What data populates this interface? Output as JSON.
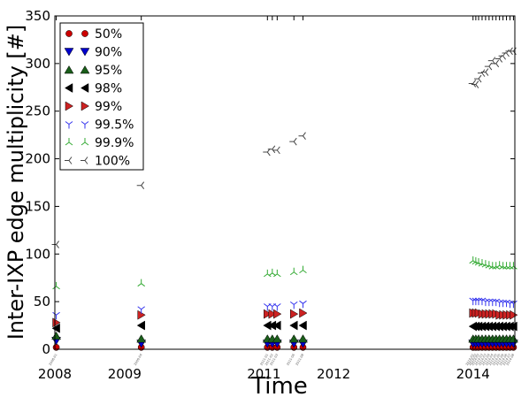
{
  "chart_data": {
    "type": "scatter",
    "title": "",
    "xlabel": "Time",
    "ylabel": "Inter-IXP edge multiplicity [#]",
    "xlim": [
      2008.0,
      2014.6
    ],
    "ylim": [
      0,
      350
    ],
    "x_ticks": [
      {
        "value": 2008,
        "label": "2008"
      },
      {
        "value": 2009,
        "label": "2009"
      },
      {
        "value": 2011,
        "label": "2011"
      },
      {
        "value": 2012,
        "label": "2012"
      },
      {
        "value": 2014,
        "label": "2014"
      }
    ],
    "y_ticks": [
      0,
      50,
      100,
      150,
      200,
      250,
      300,
      350
    ],
    "legend_position": "top-left",
    "x": [
      2008.02,
      2009.24,
      2011.05,
      2011.12,
      2011.19,
      2011.43,
      2011.56,
      2014.0,
      2014.04,
      2014.08,
      2014.13,
      2014.18,
      2014.23,
      2014.28,
      2014.33,
      2014.38,
      2014.43,
      2014.48,
      2014.53,
      2014.58
    ],
    "series": [
      {
        "name": "50%",
        "marker": "circle",
        "color": "#cc0000",
        "values": [
          2,
          2,
          2,
          2,
          2,
          2,
          2,
          2,
          2,
          2,
          2,
          2,
          2,
          2,
          2,
          2,
          2,
          2,
          2,
          2
        ]
      },
      {
        "name": "90%",
        "marker": "triangle-down",
        "color": "#0000cc",
        "values": [
          9,
          6,
          6,
          6,
          6,
          6,
          6,
          6,
          6,
          6,
          6,
          6,
          6,
          6,
          6,
          6,
          6,
          6,
          6,
          6
        ]
      },
      {
        "name": "95%",
        "marker": "triangle-up",
        "color": "#1a5e1a",
        "values": [
          14,
          11,
          11,
          11,
          11,
          11,
          11,
          11,
          11,
          11,
          11,
          11,
          11,
          11,
          11,
          11,
          11,
          11,
          11,
          11
        ]
      },
      {
        "name": "98%",
        "marker": "triangle-left",
        "color": "#000000",
        "values": [
          22,
          25,
          25,
          25,
          25,
          25,
          25,
          24,
          24,
          24,
          24,
          24,
          24,
          24,
          24,
          24,
          24,
          24,
          24,
          24
        ]
      },
      {
        "name": "99%",
        "marker": "triangle-right",
        "color": "#cc2222",
        "values": [
          28,
          36,
          37,
          37,
          37,
          37,
          38,
          38,
          38,
          38,
          37,
          37,
          37,
          37,
          37,
          36,
          36,
          36,
          36,
          36
        ]
      },
      {
        "name": "99.5%",
        "marker": "tri-down",
        "color": "#3333ee",
        "values": [
          36,
          42,
          45,
          45,
          45,
          47,
          48,
          51,
          51,
          51,
          51,
          50,
          50,
          50,
          50,
          49,
          49,
          49,
          48,
          48
        ]
      },
      {
        "name": "99.9%",
        "marker": "tri-up",
        "color": "#33aa33",
        "values": [
          66,
          69,
          79,
          80,
          79,
          81,
          83,
          93,
          92,
          91,
          90,
          89,
          88,
          87,
          87,
          88,
          87,
          87,
          87,
          87
        ]
      },
      {
        "name": "100%",
        "marker": "tri-left",
        "color": "#444444",
        "values": [
          110,
          172,
          207,
          210,
          209,
          218,
          224,
          279,
          278,
          284,
          290,
          291,
          297,
          303,
          300,
          305,
          308,
          311,
          313,
          313
        ]
      }
    ],
    "date_labels": [
      {
        "x": 2008.02,
        "text": "2008-01"
      },
      {
        "x": 2009.24,
        "text": "2009-04"
      },
      {
        "x": 2011.05,
        "text": "2011-01"
      },
      {
        "x": 2011.12,
        "text": "2011-02"
      },
      {
        "x": 2011.19,
        "text": "2011-03"
      },
      {
        "x": 2011.43,
        "text": "2011-06"
      },
      {
        "x": 2011.56,
        "text": "2011-08"
      },
      {
        "x": 2014.0,
        "text": "2014-01"
      },
      {
        "x": 2014.04,
        "text": "2014-02"
      },
      {
        "x": 2014.08,
        "text": "2014-02"
      },
      {
        "x": 2014.13,
        "text": "2014-03"
      },
      {
        "x": 2014.18,
        "text": "2014-03"
      },
      {
        "x": 2014.23,
        "text": "2014-04"
      },
      {
        "x": 2014.28,
        "text": "2014-04"
      },
      {
        "x": 2014.33,
        "text": "2014-05"
      },
      {
        "x": 2014.38,
        "text": "2014-05"
      },
      {
        "x": 2014.43,
        "text": "2014-06"
      },
      {
        "x": 2014.48,
        "text": "2014-06"
      },
      {
        "x": 2014.53,
        "text": "2014-07"
      },
      {
        "x": 2014.58,
        "text": "2014-08"
      }
    ]
  }
}
